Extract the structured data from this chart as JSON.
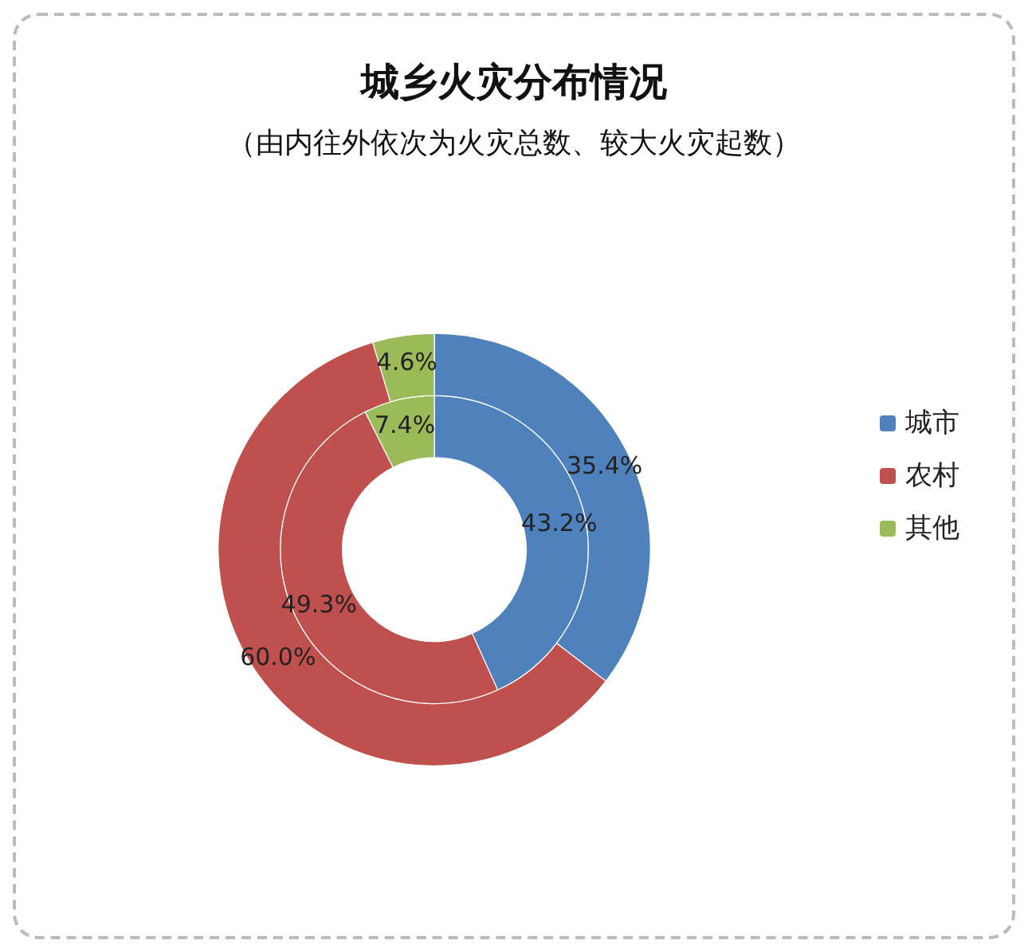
{
  "chart_data": {
    "type": "donut",
    "title": "城乡火灾分布情况",
    "subtitle": "（由内往外依次为火灾总数、较大火灾起数）",
    "categories": [
      "城市",
      "农村",
      "其他"
    ],
    "colors": [
      "#4f81bd",
      "#c0504d",
      "#9bbb59"
    ],
    "series": [
      {
        "values": [
          43.2,
          49.3,
          7.4
        ],
        "value_labels": [
          "43.2%",
          "49.3%",
          "7.4%"
        ]
      },
      {
        "values": [
          35.4,
          60.0,
          4.6
        ],
        "value_labels": [
          "35.4%",
          "60.0%",
          "4.6%"
        ]
      }
    ],
    "legend": "right"
  }
}
